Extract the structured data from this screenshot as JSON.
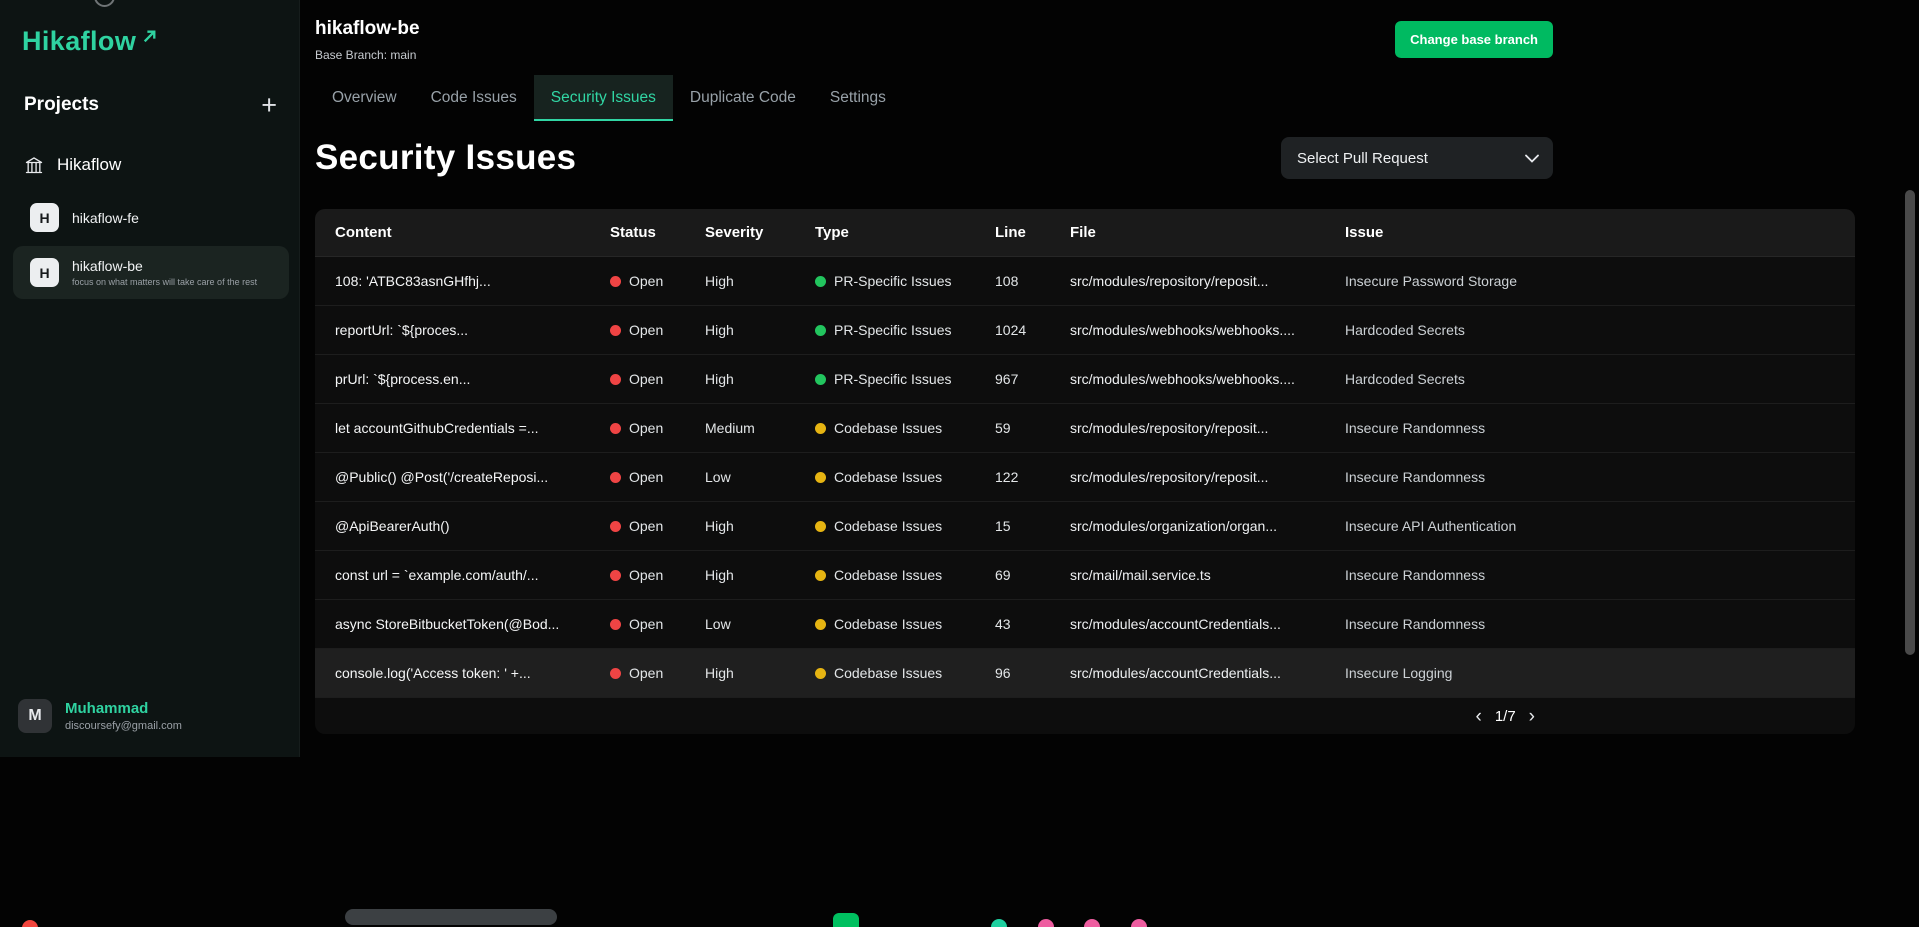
{
  "sidebar": {
    "logo_text": "Hikaflow",
    "projects_label": "Projects",
    "add_project_label": "+",
    "project_name": "Hikaflow",
    "repos": [
      {
        "initial": "H",
        "name": "hikaflow-fe",
        "subtitle": "",
        "active": false
      },
      {
        "initial": "H",
        "name": "hikaflow-be",
        "subtitle": "focus on what matters will take care of the rest",
        "active": true
      }
    ],
    "user": {
      "initial": "M",
      "name": "Muhammad",
      "email": "discoursefy@gmail.com"
    }
  },
  "header": {
    "title": "hikaflow-be",
    "subtitle": "Base Branch: main",
    "change_branch_button": "Change base branch"
  },
  "tabs": [
    {
      "label": "Overview",
      "active": false
    },
    {
      "label": "Code Issues",
      "active": false
    },
    {
      "label": "Security Issues",
      "active": true
    },
    {
      "label": "Duplicate Code",
      "active": false
    },
    {
      "label": "Settings",
      "active": false
    }
  ],
  "page": {
    "title": "Security Issues",
    "pr_select": "Select Pull Request"
  },
  "table": {
    "columns": [
      "Content",
      "Status",
      "Severity",
      "Type",
      "Line",
      "File",
      "Issue"
    ],
    "status_color": "#ef4444",
    "type_colors": {
      "PR-Specific Issues": "#22c55e",
      "Codebase Issues": "#e6b412"
    },
    "rows": [
      {
        "content": "108: 'ATBC83asnGHfhj...",
        "status": "Open",
        "severity": "High",
        "type": "PR-Specific Issues",
        "line": "108",
        "file": "src/modules/repository/reposit...",
        "issue": "Insecure Password Storage",
        "highlighted": false
      },
      {
        "content": "reportUrl: `${proces...",
        "status": "Open",
        "severity": "High",
        "type": "PR-Specific Issues",
        "line": "1024",
        "file": "src/modules/webhooks/webhooks....",
        "issue": "Hardcoded Secrets",
        "highlighted": false
      },
      {
        "content": "prUrl: `${process.en...",
        "status": "Open",
        "severity": "High",
        "type": "PR-Specific Issues",
        "line": "967",
        "file": "src/modules/webhooks/webhooks....",
        "issue": "Hardcoded Secrets",
        "highlighted": false
      },
      {
        "content": "let accountGithubCredentials =...",
        "status": "Open",
        "severity": "Medium",
        "type": "Codebase Issues",
        "line": "59",
        "file": "src/modules/repository/reposit...",
        "issue": "Insecure Randomness",
        "highlighted": false
      },
      {
        "content": "@Public() @Post('/createReposi...",
        "status": "Open",
        "severity": "Low",
        "type": "Codebase Issues",
        "line": "122",
        "file": "src/modules/repository/reposit...",
        "issue": "Insecure Randomness",
        "highlighted": false
      },
      {
        "content": "@ApiBearerAuth()",
        "status": "Open",
        "severity": "High",
        "type": "Codebase Issues",
        "line": "15",
        "file": "src/modules/organization/organ...",
        "issue": "Insecure API Authentication",
        "highlighted": false
      },
      {
        "content": "const url = `example.com/auth/...",
        "status": "Open",
        "severity": "High",
        "type": "Codebase Issues",
        "line": "69",
        "file": "src/mail/mail.service.ts",
        "issue": "Insecure Randomness",
        "highlighted": false
      },
      {
        "content": "async StoreBitbucketToken(@Bod...",
        "status": "Open",
        "severity": "Low",
        "type": "Codebase Issues",
        "line": "43",
        "file": "src/modules/accountCredentials...",
        "issue": "Insecure Randomness",
        "highlighted": false
      },
      {
        "content": "console.log('Access token: ' +...",
        "status": "Open",
        "severity": "High",
        "type": "Codebase Issues",
        "line": "96",
        "file": "src/modules/accountCredentials...",
        "issue": "Insecure Logging",
        "highlighted": true
      }
    ]
  },
  "pagination": {
    "prev": "‹",
    "label": "1/7",
    "next": "›"
  },
  "colors": {
    "brand": "#2fd3a1",
    "button_green": "#00ba61",
    "active_tab": "#31d6a4"
  },
  "dock": {
    "items": [
      {
        "name": "dock-red-dot",
        "color": "#f2453d"
      },
      {
        "name": "dock-pill",
        "color": "#3c4043"
      },
      {
        "name": "dock-green-tile",
        "color": "#00c060"
      },
      {
        "name": "dock-teal-dot",
        "color": "#1fd0a0"
      },
      {
        "name": "dock-pink-dot-1",
        "color": "#ee5da0"
      },
      {
        "name": "dock-pink-dot-2",
        "color": "#ee5da0"
      },
      {
        "name": "dock-pink-dot-3",
        "color": "#ee5da0"
      }
    ]
  }
}
